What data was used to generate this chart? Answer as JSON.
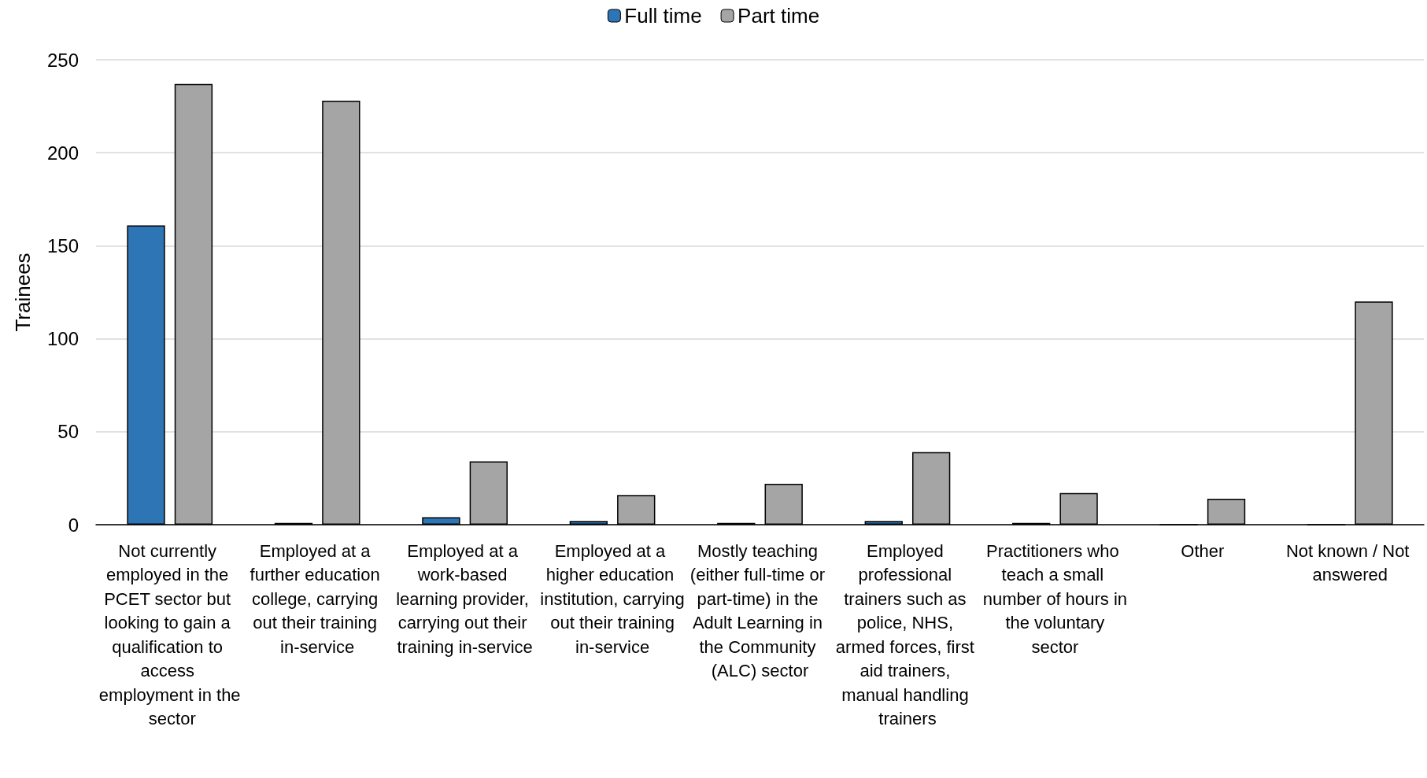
{
  "chart_data": {
    "type": "bar",
    "ylabel": "Trainees",
    "categories": [
      "Not currently employed in the PCET sector but looking to gain a qualification to access employment in the sector",
      "Employed at a further education college, carrying out their training in-service",
      "Employed at a work-based learning provider, carrying out their training in-service",
      "Employed at a higher education institution, carrying out their training in-service",
      "Mostly teaching (either full-time or part-time) in the Adult Learning in the Community (ALC) sector",
      "Employed professional trainers such as police, NHS, armed forces, first aid trainers, manual handling trainers",
      "Practitioners who teach a small number of hours in the voluntary sector",
      "Other",
      "Not known / Not answered"
    ],
    "series": [
      {
        "name": "Full time",
        "color": "#2e75b6",
        "values": [
          161,
          1,
          4,
          2,
          1,
          2,
          1,
          0,
          0
        ]
      },
      {
        "name": "Part time",
        "color": "#a5a5a5",
        "values": [
          237,
          228,
          34,
          16,
          22,
          39,
          17,
          14,
          120
        ]
      }
    ],
    "ylim": [
      0,
      250
    ],
    "yticks": [
      0,
      50,
      100,
      150,
      200,
      250
    ],
    "grid": "y",
    "legend": "top"
  }
}
